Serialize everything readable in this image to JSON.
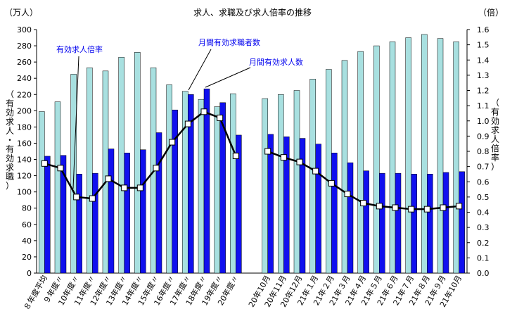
{
  "chart_data": {
    "type": "bar",
    "title": "求人、求職及び求人倍率の推移",
    "left_unit": "（万人）",
    "right_unit": "（倍）",
    "ylabel_left": "（有効求人・有効求職）",
    "ylabel_right": "（有効求人倍率）",
    "ylim_left": [
      0,
      300
    ],
    "ylim_right": [
      0,
      1.6
    ],
    "left_ticks": [
      0,
      20,
      40,
      60,
      80,
      100,
      120,
      140,
      160,
      180,
      200,
      220,
      240,
      260,
      280,
      300
    ],
    "right_ticks": [
      "0.0",
      "0.1",
      "0.2",
      "0.3",
      "0.4",
      "0.5",
      "0.6",
      "0.7",
      "0.8",
      "0.9",
      "1.0",
      "1.1",
      "1.2",
      "1.3",
      "1.4",
      "1.5",
      "1.6"
    ],
    "categories": [
      "８年度平均",
      "９年度〃",
      "10年度〃",
      "11年度〃",
      "12年度〃",
      "13年度〃",
      "14年度〃",
      "15年度〃",
      "16年度〃",
      "17年度〃",
      "18年度〃",
      "19年度〃",
      "20年度〃",
      "",
      "20年10月",
      "20年11月",
      "20年12月",
      "21年１月",
      "21年２月",
      "21年３月",
      "21年４月",
      "21年５月",
      "21年６月",
      "21年７月",
      "21年８月",
      "21年９月",
      "21年10月"
    ],
    "series": [
      {
        "name": "月間有効求職者数",
        "role": "job_seekers",
        "color": "#a8e0e0",
        "values": [
          199,
          211,
          245,
          253,
          249,
          266,
          272,
          253,
          232,
          224,
          214,
          205,
          221,
          null,
          215,
          220,
          225,
          239,
          251,
          262,
          273,
          280,
          285,
          290,
          294,
          289,
          285
        ]
      },
      {
        "name": "月間有効求人数",
        "role": "job_offers",
        "color": "#1010ee",
        "values": [
          144,
          145,
          122,
          123,
          153,
          148,
          152,
          173,
          201,
          220,
          227,
          210,
          170,
          null,
          171,
          168,
          166,
          159,
          148,
          136,
          126,
          123,
          123,
          122,
          122,
          124,
          125
        ]
      },
      {
        "name": "有効求人倍率",
        "role": "ratio",
        "axis": "right",
        "color": "#000000",
        "values": [
          0.72,
          0.69,
          0.5,
          0.49,
          0.62,
          0.56,
          0.56,
          0.69,
          0.86,
          0.98,
          1.06,
          1.02,
          0.77,
          null,
          0.8,
          0.76,
          0.73,
          0.67,
          0.59,
          0.52,
          0.46,
          0.44,
          0.43,
          0.42,
          0.42,
          0.43,
          0.44
        ]
      }
    ],
    "annotations": [
      "有効求人倍率",
      "月間有効求職者数",
      "月間有効求人数"
    ],
    "grid": false,
    "legend": "annotations"
  }
}
